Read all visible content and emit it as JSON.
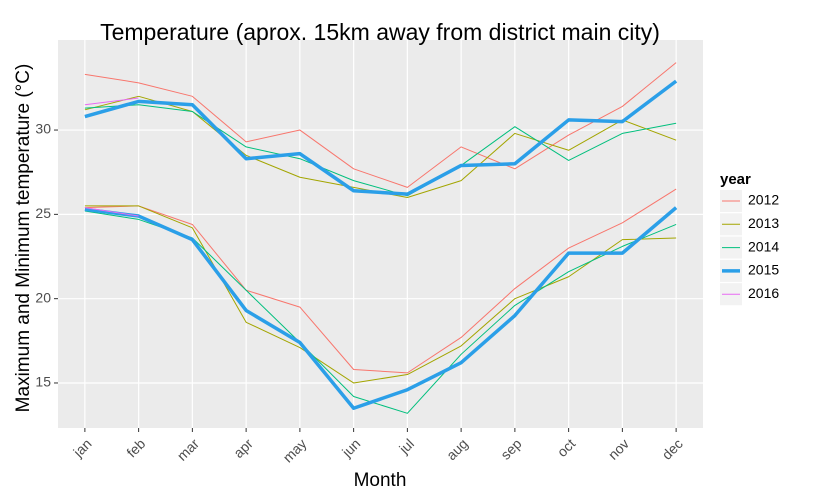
{
  "chart_data": {
    "type": "line",
    "title": "Temperature (aprox. 15km away from district main city)",
    "x_label": "Month",
    "y_label": "Maximum and Minimum temperature (°C)",
    "legend_title": "year",
    "categories": [
      "jan",
      "feb",
      "mar",
      "apr",
      "may",
      "jun",
      "jul",
      "aug",
      "sep",
      "oct",
      "nov",
      "dec"
    ],
    "ylim": [
      12.33,
      35.34
    ],
    "yticks": [
      15,
      20,
      25,
      30
    ],
    "grid": true,
    "legend": "right",
    "series": [
      {
        "name": "2012",
        "color": "#F8766D",
        "line_width": 1,
        "lines": [
          [
            33.3,
            32.8,
            32.0,
            29.3,
            30.0,
            27.7,
            26.6,
            29.0,
            27.7,
            29.7,
            31.4,
            34.0
          ],
          [
            25.4,
            25.5,
            24.4,
            20.5,
            19.5,
            15.8,
            15.6,
            17.7,
            20.6,
            23.0,
            24.5,
            26.5
          ]
        ]
      },
      {
        "name": "2013",
        "color": "#A3A500",
        "line_width": 1,
        "lines": [
          [
            31.2,
            32.0,
            31.1,
            28.5,
            27.2,
            26.6,
            26.0,
            27.0,
            29.8,
            28.8,
            30.6,
            29.4
          ],
          [
            25.5,
            25.5,
            24.2,
            18.6,
            17.1,
            15.0,
            15.5,
            17.2,
            20.0,
            21.3,
            23.5,
            23.6
          ]
        ]
      },
      {
        "name": "2014",
        "color": "#00BF7D",
        "line_width": 1,
        "lines": [
          [
            31.3,
            31.5,
            31.1,
            29.0,
            28.3,
            27.0,
            26.1,
            27.9,
            30.2,
            28.2,
            29.8,
            30.4
          ],
          [
            25.2,
            24.7,
            23.6,
            20.5,
            17.4,
            14.2,
            13.2,
            16.7,
            19.6,
            21.6,
            23.1,
            24.4
          ]
        ]
      },
      {
        "name": "2015",
        "color": "#2B9FE8",
        "line_width": 3.5,
        "lines": [
          [
            30.8,
            31.7,
            31.5,
            28.3,
            28.6,
            26.4,
            26.2,
            27.9,
            28.0,
            30.6,
            30.5,
            32.9
          ],
          [
            25.3,
            24.9,
            23.5,
            19.3,
            17.4,
            13.5,
            14.6,
            16.2,
            19.0,
            22.7,
            22.7,
            25.4
          ]
        ]
      },
      {
        "name": "2016",
        "color": "#E76BF3",
        "line_width": 1,
        "lines": [
          [
            31.5,
            31.9,
            null,
            null,
            null,
            null,
            null,
            null,
            null,
            null,
            null,
            null
          ],
          [
            25.4,
            24.9,
            null,
            null,
            null,
            null,
            null,
            null,
            null,
            null,
            null,
            null
          ]
        ]
      }
    ]
  }
}
